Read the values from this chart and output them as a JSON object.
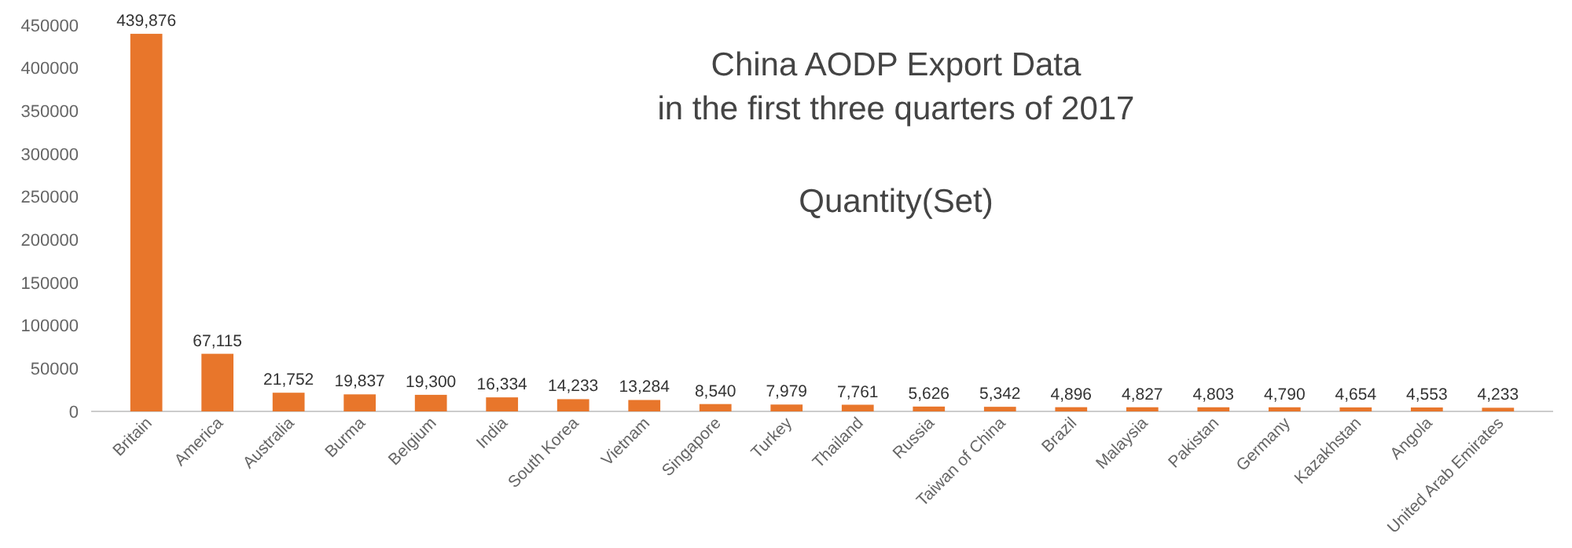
{
  "chart_data": {
    "type": "bar",
    "title": "China AODP Export Data\nin the first three quarters of 2017",
    "subtitle": "Quantity(Set)",
    "categories": [
      "Britain",
      "America",
      "Australia",
      "Burma",
      "Belgium",
      "India",
      "South Korea",
      "Vietnam",
      "Singapore",
      "Turkey",
      "Thailand",
      "Russia",
      "Taiwan of China",
      "Brazil",
      "Malaysia",
      "Pakistan",
      "Germany",
      "Kazakhstan",
      "Angola",
      "United Arab Emirates"
    ],
    "values": [
      439876,
      67115,
      21752,
      19837,
      19300,
      16334,
      14233,
      13284,
      8540,
      7979,
      7761,
      5626,
      5342,
      4896,
      4827,
      4803,
      4790,
      4654,
      4553,
      4233
    ],
    "color": "#e8762b",
    "ylim": [
      0,
      450000
    ],
    "yticks": [
      0,
      50000,
      100000,
      150000,
      200000,
      250000,
      300000,
      350000,
      400000,
      450000
    ],
    "value_labels": [
      "439,876",
      "67,115",
      "21,752",
      "19,837",
      "19,300",
      "16,334",
      "14,233",
      "13,284",
      "8,540",
      "7,979",
      "7,761",
      "5,626",
      "5,342",
      "4,896",
      "4,827",
      "4,803",
      "4,790",
      "4,654",
      "4,553",
      "4,233"
    ],
    "grid": false
  }
}
